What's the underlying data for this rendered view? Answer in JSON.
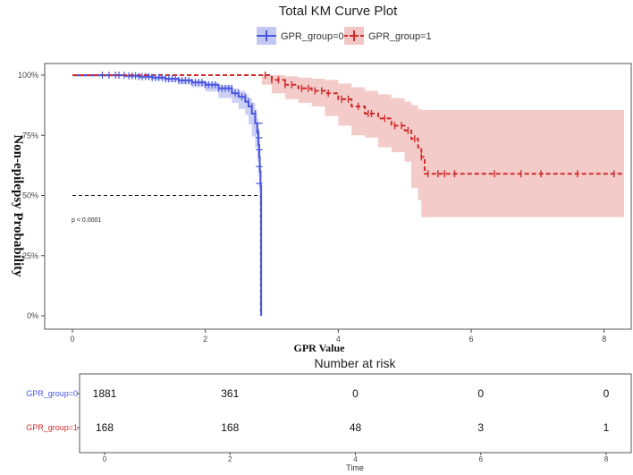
{
  "chart_data": [
    {
      "type": "line",
      "subtype": "kaplan-meier",
      "title": "Total KM Curve Plot",
      "xlabel": "GPR Value",
      "ylabel": "Non-epilepsy Probability",
      "xlim": [
        0,
        8.3
      ],
      "ylim": [
        0,
        1
      ],
      "x_ticks": [
        0,
        2,
        4,
        6,
        8
      ],
      "x_tick_labels": [
        "0",
        "2",
        "4",
        "6",
        "8"
      ],
      "y_ticks": [
        0,
        0.25,
        0.5,
        0.75,
        1.0
      ],
      "y_tick_labels": [
        "0%",
        "25%",
        "50%",
        "75%",
        "100%"
      ],
      "legend_position": "top",
      "annotation": "p < 0.0001",
      "median_line": {
        "y": 0.5,
        "x_end": 2.83
      },
      "series": [
        {
          "name": "GPR_group=0",
          "color": "#4955e0",
          "fill": "#c3c8f2",
          "x": [
            0,
            0.8,
            1.0,
            1.2,
            1.4,
            1.6,
            1.8,
            2.0,
            2.2,
            2.4,
            2.5,
            2.6,
            2.65,
            2.7,
            2.75,
            2.78,
            2.8,
            2.81,
            2.82,
            2.83,
            2.84
          ],
          "y": [
            1.0,
            0.997,
            0.994,
            0.99,
            0.985,
            0.978,
            0.97,
            0.96,
            0.945,
            0.925,
            0.91,
            0.89,
            0.87,
            0.84,
            0.8,
            0.76,
            0.71,
            0.66,
            0.6,
            0.54,
            0.0
          ],
          "ci_upper": [
            1.0,
            1.0,
            0.998,
            0.995,
            0.99,
            0.985,
            0.978,
            0.97,
            0.958,
            0.945,
            0.935,
            0.92,
            0.905,
            0.885,
            0.855,
            0.82,
            0.78,
            0.74,
            0.69,
            0.62,
            0.3
          ],
          "ci_lower": [
            1.0,
            0.993,
            0.99,
            0.985,
            0.98,
            0.972,
            0.962,
            0.95,
            0.932,
            0.905,
            0.885,
            0.86,
            0.835,
            0.795,
            0.745,
            0.7,
            0.64,
            0.58,
            0.51,
            0.46,
            0.0
          ]
        },
        {
          "name": "GPR_group=1",
          "color": "#d22b2b",
          "fill": "#f2c6c4",
          "x": [
            0,
            2.85,
            3.0,
            3.2,
            3.4,
            3.6,
            3.8,
            4.0,
            4.2,
            4.4,
            4.6,
            4.8,
            5.0,
            5.1,
            5.2,
            5.25,
            5.3,
            8.3
          ],
          "y": [
            1.0,
            1.0,
            0.98,
            0.96,
            0.945,
            0.935,
            0.925,
            0.9,
            0.87,
            0.84,
            0.82,
            0.79,
            0.77,
            0.735,
            0.7,
            0.66,
            0.59,
            0.59
          ],
          "ci_upper": [
            1.0,
            1.0,
            1.0,
            0.995,
            0.99,
            0.985,
            0.98,
            0.965,
            0.95,
            0.935,
            0.92,
            0.905,
            0.89,
            0.875,
            0.86,
            0.855,
            0.855,
            0.855
          ],
          "ci_lower": [
            1.0,
            1.0,
            0.96,
            0.925,
            0.9,
            0.885,
            0.87,
            0.83,
            0.79,
            0.75,
            0.74,
            0.7,
            0.68,
            0.64,
            0.53,
            0.48,
            0.41,
            0.41
          ],
          "censor_x": [
            2.9,
            3.0,
            3.1,
            3.2,
            3.3,
            3.45,
            3.55,
            3.65,
            3.75,
            3.85,
            4.05,
            4.15,
            4.3,
            4.45,
            4.5,
            4.7,
            4.85,
            4.95,
            5.05,
            5.15,
            5.25,
            5.35,
            5.5,
            5.6,
            5.75,
            6.35,
            6.75,
            7.05,
            7.6,
            8.15
          ]
        }
      ]
    },
    {
      "type": "table",
      "title": "Number at risk",
      "xlabel": "Time",
      "x_ticks": [
        0,
        2,
        4,
        6,
        8
      ],
      "x_tick_labels": [
        "0",
        "2",
        "4",
        "6",
        "8"
      ],
      "rows": [
        {
          "name": "GPR_group=0",
          "color": "#4955e0",
          "values": [
            "1881",
            "361",
            "0",
            "0",
            "0"
          ]
        },
        {
          "name": "GPR_group=1",
          "color": "#d22b2b",
          "values": [
            "168",
            "168",
            "48",
            "3",
            "1"
          ]
        }
      ]
    }
  ]
}
